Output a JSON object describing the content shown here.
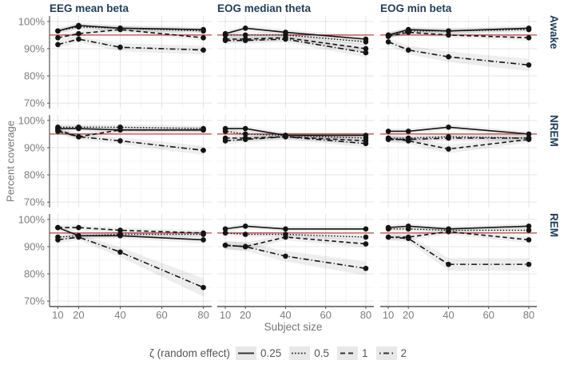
{
  "figure": {
    "y_axis_label": "Percent coverage",
    "x_axis_label": "Subject size",
    "legend_title": "ζ (random effect)"
  },
  "chart_data": {
    "type": "line",
    "facet_grid": "3 rows (sleep stage) x 3 cols (signal metric)",
    "rows": [
      "Awake",
      "NREM",
      "REM"
    ],
    "cols": [
      "EEG mean beta",
      "EOG median theta",
      "EOG min beta"
    ],
    "x": [
      10,
      20,
      40,
      80
    ],
    "x_ticks": [
      10,
      20,
      40,
      60,
      80
    ],
    "y_ticks": [
      100,
      90,
      80,
      70
    ],
    "y_tick_suffix": "%",
    "xlim": [
      6,
      84
    ],
    "ylim": [
      68,
      102
    ],
    "grid": "major and minor, light gray",
    "reference_line_y": 95,
    "legend_position": "bottom",
    "legend": [
      {
        "label": "0.25",
        "linetype": "solid"
      },
      {
        "label": "0.5",
        "linetype": "dotted"
      },
      {
        "label": "1",
        "linetype": "dashed"
      },
      {
        "label": "2",
        "linetype": "dashdot"
      }
    ],
    "series_note": "values keyed by 'row|col', arrays ordered by legend zeta 0.25/0.5/1/2, percent coverage at subject sizes 10/20/40/80, each line has light-gray confidence ribbon",
    "values": {
      "Awake|EEG mean beta": [
        [
          96.5,
          98.5,
          97.5,
          97
        ],
        [
          96.5,
          98,
          97.5,
          96.5
        ],
        [
          94,
          95.5,
          97,
          94
        ],
        [
          91.5,
          93.5,
          90.5,
          89.5
        ]
      ],
      "Awake|EOG median theta": [
        [
          95.5,
          97.5,
          96,
          93.5
        ],
        [
          95,
          95,
          95,
          92.5
        ],
        [
          93.5,
          93.5,
          94,
          90
        ],
        [
          93,
          93,
          93.5,
          88.5
        ]
      ],
      "Awake|EOG min beta": [
        [
          95,
          97,
          96.5,
          97.5
        ],
        [
          95,
          96.5,
          96.5,
          97
        ],
        [
          94.5,
          96,
          95,
          94
        ],
        [
          92.5,
          89.5,
          87,
          84
        ]
      ],
      "NREM|EEG mean beta": [
        [
          97,
          97,
          96.5,
          96.5
        ],
        [
          97.5,
          97.5,
          97.5,
          97
        ],
        [
          96.5,
          94,
          96.5,
          96.5
        ],
        [
          96,
          94,
          92.5,
          89
        ]
      ],
      "NREM|EOG median theta": [
        [
          97,
          97,
          94.5,
          94.5
        ],
        [
          96,
          95,
          94.5,
          93.5
        ],
        [
          93.5,
          93.5,
          94,
          92.5
        ],
        [
          92.5,
          93,
          94,
          91.5
        ]
      ],
      "NREM|EOG min beta": [
        [
          96,
          96,
          97.5,
          95
        ],
        [
          93.5,
          93.5,
          94,
          93.5
        ],
        [
          93.5,
          92.5,
          89.5,
          93
        ],
        [
          93,
          93,
          93.5,
          93.5
        ]
      ],
      "REM|EEG mean beta": [
        [
          97,
          94,
          94,
          92.5
        ],
        [
          93.5,
          94,
          94.5,
          94.5
        ],
        [
          97,
          97,
          96,
          95
        ],
        [
          92.5,
          93.5,
          88,
          75
        ]
      ],
      "REM|EOG median theta": [
        [
          96.5,
          97.5,
          96.5,
          96.5
        ],
        [
          95,
          94.5,
          94.5,
          93.5
        ],
        [
          90.5,
          90,
          93.5,
          91
        ],
        [
          90.5,
          90,
          86.5,
          82
        ]
      ],
      "REM|EOG min beta": [
        [
          97,
          97.5,
          96.5,
          97.5
        ],
        [
          96.5,
          96.5,
          96,
          96
        ],
        [
          93.5,
          93.5,
          95.5,
          92.5
        ],
        [
          93.5,
          93,
          83.5,
          83.5
        ]
      ]
    },
    "colors": {
      "facet_title": "#1f3e5a",
      "reference_line": "#bf4240",
      "data_line": "#141414",
      "axis_text": "#7d7d7d",
      "major_grid": "#e4e4e4",
      "minor_grid": "#f2f2f2",
      "axis_line": "#555555",
      "ribbon": "rgba(0,0,0,0.065)",
      "legend_key_bg": "#e8e8e8"
    }
  }
}
